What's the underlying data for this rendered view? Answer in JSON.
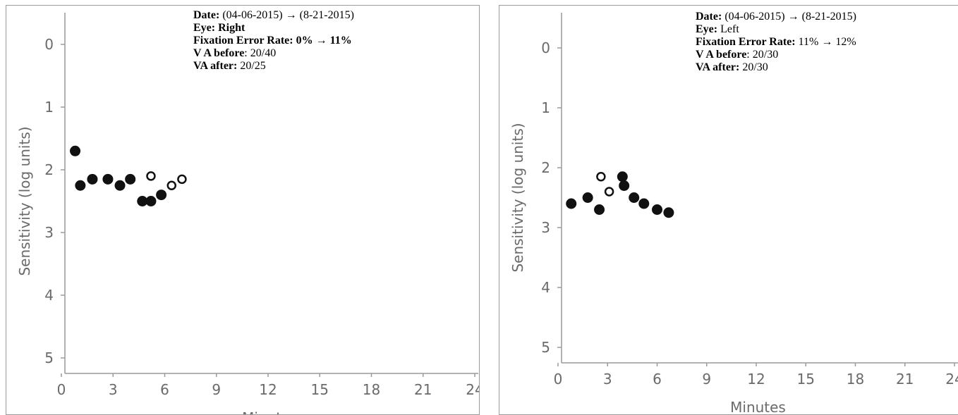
{
  "panels": [
    {
      "info": {
        "date_label": "Date:",
        "date_from": "(04-06-2015)",
        "date_to": "(8-21-2015)",
        "eye_label": "Eye:",
        "eye_value": "Right",
        "fer_label": "Fixation Error Rate:",
        "fer_from": "0%",
        "fer_to": "11%",
        "vab_label": "V A before",
        "vab_value": ": 20/40",
        "vaa_label": "VA after:",
        "vaa_value": "20/25",
        "arrow": "→"
      }
    },
    {
      "info": {
        "date_label": "Date:",
        "date_from": "(04-06-2015)",
        "date_to": "(8-21-2015)",
        "eye_label": "Eye:",
        "eye_value": "Left",
        "fer_label": "Fixation Error Rate:",
        "fer_from": "11%",
        "fer_to": "12%",
        "vab_label": "V A before",
        "vab_value": ": 20/30",
        "vaa_label": "VA after:",
        "vaa_value": "20/30",
        "arrow": "→"
      }
    }
  ],
  "chart_data": [
    {
      "type": "scatter",
      "title": "",
      "xlabel": "Minutes",
      "ylabel": "Sensitivity (log units)",
      "xlim": [
        0,
        24
      ],
      "ylim": [
        0,
        5
      ],
      "y_inverted": true,
      "xticks": [
        0,
        3,
        6,
        9,
        12,
        15,
        18,
        21,
        24
      ],
      "yticks": [
        0,
        1,
        2,
        3,
        4,
        5
      ],
      "grid": false,
      "point_color": "#111111",
      "series": [
        {
          "marker": "filled",
          "x": [
            0.8,
            1.1,
            1.8,
            2.7,
            3.4,
            4.0,
            4.7,
            5.2,
            5.8
          ],
          "y": [
            1.7,
            2.25,
            2.15,
            2.15,
            2.25,
            2.15,
            2.5,
            2.5,
            2.4
          ]
        },
        {
          "marker": "open",
          "x": [
            5.2,
            6.4,
            7.0
          ],
          "y": [
            2.1,
            2.25,
            2.15
          ]
        }
      ]
    },
    {
      "type": "scatter",
      "title": "",
      "xlabel": "Minutes",
      "ylabel": "Sensitivity (log units)",
      "xlim": [
        0,
        24
      ],
      "ylim": [
        0,
        5
      ],
      "y_inverted": true,
      "xticks": [
        0,
        3,
        6,
        9,
        12,
        15,
        18,
        21,
        24
      ],
      "yticks": [
        0,
        1,
        2,
        3,
        4,
        5
      ],
      "grid": false,
      "point_color": "#111111",
      "series": [
        {
          "marker": "filled",
          "x": [
            0.8,
            1.8,
            2.5,
            3.9,
            4.0,
            4.6,
            5.2,
            6.0,
            6.7
          ],
          "y": [
            2.6,
            2.5,
            2.7,
            2.15,
            2.3,
            2.5,
            2.6,
            2.7,
            2.75
          ]
        },
        {
          "marker": "open",
          "x": [
            2.6,
            3.1
          ],
          "y": [
            2.15,
            2.4
          ]
        }
      ]
    }
  ]
}
